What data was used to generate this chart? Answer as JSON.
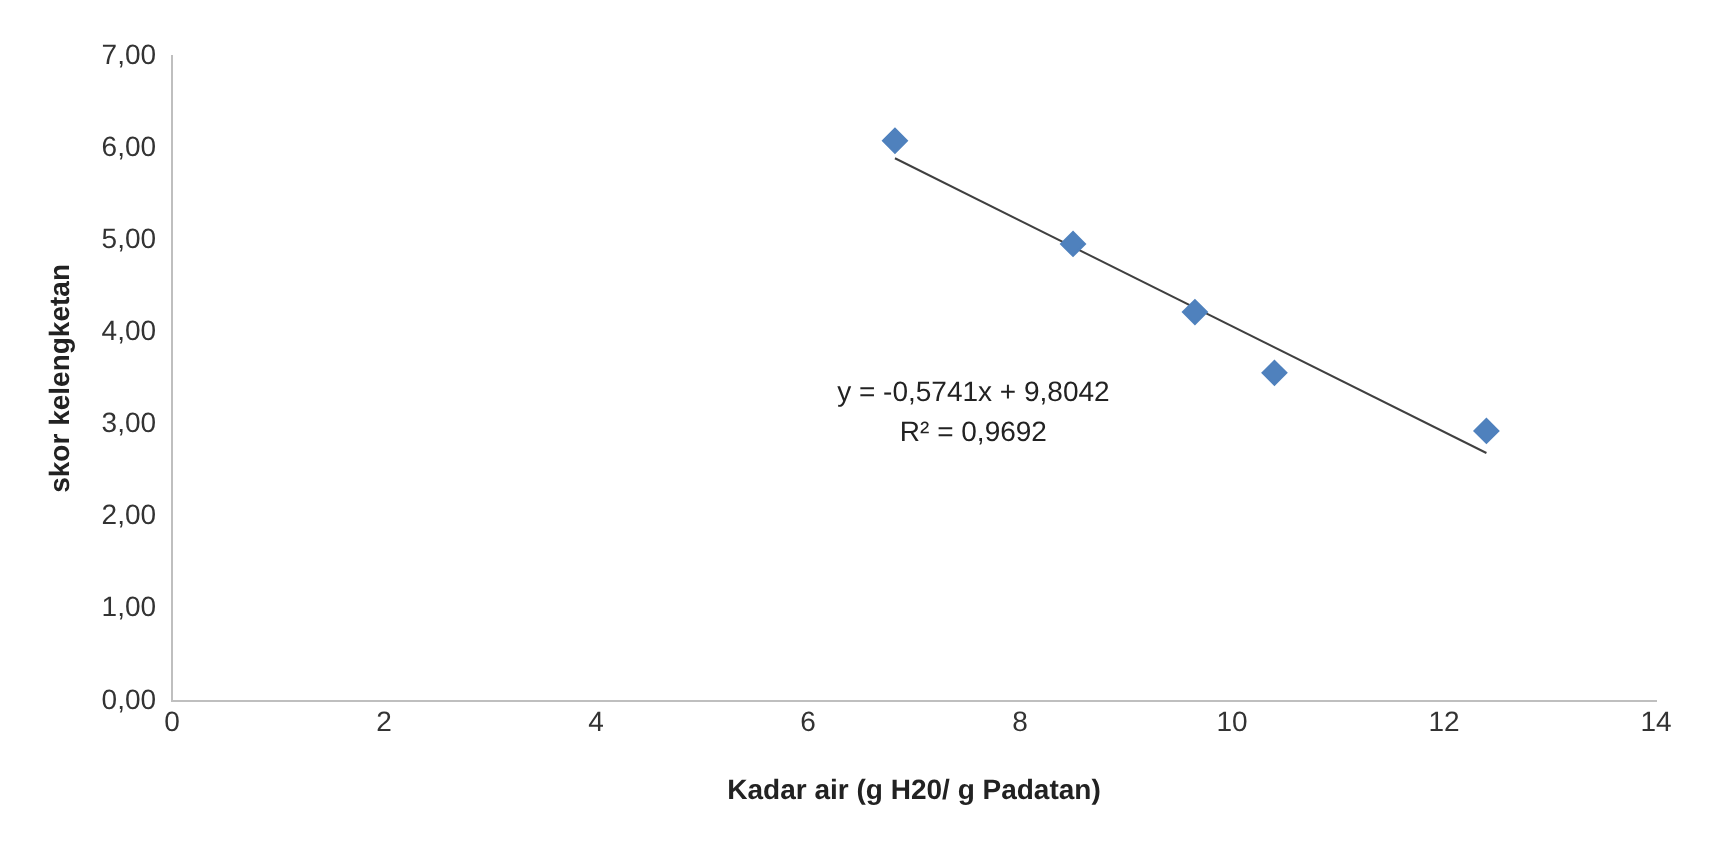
{
  "chart_data": {
    "type": "scatter",
    "xlabel": "Kadar air (g H20/ g Padatan)",
    "ylabel": "skor kelengketan",
    "xlim": [
      0,
      14
    ],
    "xticks": [
      0,
      2,
      4,
      6,
      8,
      10,
      12,
      14
    ],
    "ylim": [
      0,
      7
    ],
    "yticks": [
      {
        "value": 0,
        "label": "0,00"
      },
      {
        "value": 1,
        "label": "1,00"
      },
      {
        "value": 2,
        "label": "2,00"
      },
      {
        "value": 3,
        "label": "3,00"
      },
      {
        "value": 4,
        "label": "4,00"
      },
      {
        "value": 5,
        "label": "5,00"
      },
      {
        "value": 6,
        "label": "6,00"
      },
      {
        "value": 7,
        "label": "7,00"
      }
    ],
    "grid": false,
    "legend": false,
    "marker": "diamond",
    "series": [
      {
        "color": "#4f81bd",
        "x": [
          6.82,
          8.5,
          9.65,
          10.4,
          12.4
        ],
        "values": [
          6.08,
          4.96,
          4.22,
          3.56,
          2.93
        ]
      },
      {
        "type": "line",
        "color": "#404040",
        "marker": "none",
        "x": [
          6.82,
          12.4
        ],
        "values": [
          5.89,
          2.69
        ]
      }
    ],
    "annotations": [
      "y = -0,5741x + 9,8042",
      "R² = 0,9692"
    ]
  }
}
